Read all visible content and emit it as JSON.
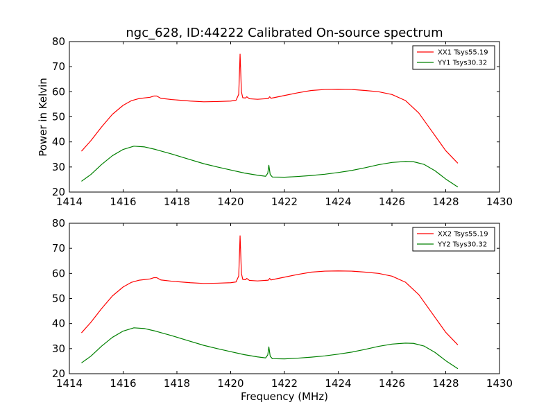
{
  "figure": {
    "title": "ngc_628, ID:44222 Calibrated On-source spectrum",
    "xlabel": "Frequency (MHz)",
    "ylabel": "Power in Kelvin"
  },
  "chart_data": [
    {
      "type": "line",
      "xlim": [
        1414,
        1430
      ],
      "ylim": [
        20,
        80
      ],
      "xticks": [
        1414,
        1416,
        1418,
        1420,
        1422,
        1424,
        1426,
        1428,
        1430
      ],
      "yticks": [
        20,
        30,
        40,
        50,
        60,
        70,
        80
      ],
      "ylabel": "Power in Kelvin",
      "xlabel": "",
      "legend_position": "top-right",
      "series": [
        {
          "name": "XX1 Tsys55.19",
          "color": "#ff0000",
          "points": [
            [
              1414.45,
              36.3
            ],
            [
              1414.8,
              40.5
            ],
            [
              1415.2,
              46.0
            ],
            [
              1415.6,
              51.0
            ],
            [
              1416.0,
              54.6
            ],
            [
              1416.3,
              56.4
            ],
            [
              1416.6,
              57.3
            ],
            [
              1417.0,
              57.8
            ],
            [
              1417.15,
              58.3
            ],
            [
              1417.25,
              58.3
            ],
            [
              1417.4,
              57.4
            ],
            [
              1417.8,
              56.9
            ],
            [
              1418.5,
              56.3
            ],
            [
              1419.0,
              56.0
            ],
            [
              1419.5,
              56.1
            ],
            [
              1420.0,
              56.3
            ],
            [
              1420.2,
              56.6
            ],
            [
              1420.3,
              59.0
            ],
            [
              1420.35,
              75.0
            ],
            [
              1420.4,
              60.0
            ],
            [
              1420.45,
              57.6
            ],
            [
              1420.55,
              57.5
            ],
            [
              1420.6,
              58.0
            ],
            [
              1420.7,
              57.2
            ],
            [
              1421.0,
              57.0
            ],
            [
              1421.4,
              57.3
            ],
            [
              1421.45,
              58.0
            ],
            [
              1421.5,
              57.4
            ],
            [
              1422.0,
              58.5
            ],
            [
              1422.5,
              59.6
            ],
            [
              1423.0,
              60.5
            ],
            [
              1423.5,
              60.9
            ],
            [
              1424.0,
              61.0
            ],
            [
              1424.5,
              60.9
            ],
            [
              1425.0,
              60.5
            ],
            [
              1425.5,
              60.0
            ],
            [
              1426.0,
              58.9
            ],
            [
              1426.5,
              56.5
            ],
            [
              1427.0,
              51.5
            ],
            [
              1427.5,
              44.0
            ],
            [
              1428.0,
              36.5
            ],
            [
              1428.45,
              31.5
            ]
          ]
        },
        {
          "name": "YY1 Tsys30.32",
          "color": "#008000",
          "points": [
            [
              1414.45,
              24.3
            ],
            [
              1414.8,
              27.0
            ],
            [
              1415.2,
              31.0
            ],
            [
              1415.6,
              34.5
            ],
            [
              1416.0,
              37.0
            ],
            [
              1416.4,
              38.3
            ],
            [
              1416.8,
              38.0
            ],
            [
              1417.2,
              37.0
            ],
            [
              1417.8,
              35.2
            ],
            [
              1418.5,
              32.9
            ],
            [
              1419.0,
              31.3
            ],
            [
              1419.5,
              30.0
            ],
            [
              1420.0,
              28.8
            ],
            [
              1420.5,
              27.6
            ],
            [
              1421.0,
              26.7
            ],
            [
              1421.3,
              26.3
            ],
            [
              1421.38,
              27.5
            ],
            [
              1421.42,
              30.7
            ],
            [
              1421.47,
              27.0
            ],
            [
              1421.55,
              26.0
            ],
            [
              1422.0,
              25.9
            ],
            [
              1422.5,
              26.2
            ],
            [
              1423.0,
              26.6
            ],
            [
              1423.5,
              27.1
            ],
            [
              1424.0,
              27.8
            ],
            [
              1424.5,
              28.6
            ],
            [
              1425.0,
              29.7
            ],
            [
              1425.5,
              30.9
            ],
            [
              1426.0,
              31.8
            ],
            [
              1426.5,
              32.2
            ],
            [
              1426.8,
              32.1
            ],
            [
              1427.2,
              31.0
            ],
            [
              1427.6,
              28.5
            ],
            [
              1428.0,
              25.2
            ],
            [
              1428.45,
              22.0
            ]
          ]
        }
      ]
    },
    {
      "type": "line",
      "xlim": [
        1414,
        1430
      ],
      "ylim": [
        20,
        80
      ],
      "xticks": [
        1414,
        1416,
        1418,
        1420,
        1422,
        1424,
        1426,
        1428,
        1430
      ],
      "yticks": [
        20,
        30,
        40,
        50,
        60,
        70,
        80
      ],
      "ylabel": "",
      "xlabel": "Frequency (MHz)",
      "legend_position": "top-right",
      "series": [
        {
          "name": "XX2 Tsys55.19",
          "color": "#ff0000",
          "points": [
            [
              1414.45,
              36.3
            ],
            [
              1414.8,
              40.5
            ],
            [
              1415.2,
              46.0
            ],
            [
              1415.6,
              51.0
            ],
            [
              1416.0,
              54.6
            ],
            [
              1416.3,
              56.4
            ],
            [
              1416.6,
              57.3
            ],
            [
              1417.0,
              57.8
            ],
            [
              1417.15,
              58.3
            ],
            [
              1417.25,
              58.3
            ],
            [
              1417.4,
              57.4
            ],
            [
              1417.8,
              56.9
            ],
            [
              1418.5,
              56.3
            ],
            [
              1419.0,
              56.0
            ],
            [
              1419.5,
              56.1
            ],
            [
              1420.0,
              56.3
            ],
            [
              1420.2,
              56.6
            ],
            [
              1420.3,
              59.0
            ],
            [
              1420.35,
              75.0
            ],
            [
              1420.4,
              60.0
            ],
            [
              1420.45,
              57.6
            ],
            [
              1420.55,
              57.5
            ],
            [
              1420.6,
              58.0
            ],
            [
              1420.7,
              57.2
            ],
            [
              1421.0,
              57.0
            ],
            [
              1421.4,
              57.3
            ],
            [
              1421.45,
              58.0
            ],
            [
              1421.5,
              57.4
            ],
            [
              1422.0,
              58.5
            ],
            [
              1422.5,
              59.6
            ],
            [
              1423.0,
              60.5
            ],
            [
              1423.5,
              60.9
            ],
            [
              1424.0,
              61.0
            ],
            [
              1424.5,
              60.9
            ],
            [
              1425.0,
              60.5
            ],
            [
              1425.5,
              60.0
            ],
            [
              1426.0,
              58.9
            ],
            [
              1426.5,
              56.5
            ],
            [
              1427.0,
              51.5
            ],
            [
              1427.5,
              44.0
            ],
            [
              1428.0,
              36.5
            ],
            [
              1428.45,
              31.5
            ]
          ]
        },
        {
          "name": "YY2 Tsys30.32",
          "color": "#008000",
          "points": [
            [
              1414.45,
              24.3
            ],
            [
              1414.8,
              27.0
            ],
            [
              1415.2,
              31.0
            ],
            [
              1415.6,
              34.5
            ],
            [
              1416.0,
              37.0
            ],
            [
              1416.4,
              38.3
            ],
            [
              1416.8,
              38.0
            ],
            [
              1417.2,
              37.0
            ],
            [
              1417.8,
              35.2
            ],
            [
              1418.5,
              32.9
            ],
            [
              1419.0,
              31.3
            ],
            [
              1419.5,
              30.0
            ],
            [
              1420.0,
              28.8
            ],
            [
              1420.5,
              27.6
            ],
            [
              1421.0,
              26.7
            ],
            [
              1421.3,
              26.3
            ],
            [
              1421.38,
              27.5
            ],
            [
              1421.42,
              30.7
            ],
            [
              1421.47,
              27.0
            ],
            [
              1421.55,
              26.0
            ],
            [
              1422.0,
              25.9
            ],
            [
              1422.5,
              26.2
            ],
            [
              1423.0,
              26.6
            ],
            [
              1423.5,
              27.1
            ],
            [
              1424.0,
              27.8
            ],
            [
              1424.5,
              28.6
            ],
            [
              1425.0,
              29.7
            ],
            [
              1425.5,
              30.9
            ],
            [
              1426.0,
              31.8
            ],
            [
              1426.5,
              32.2
            ],
            [
              1426.8,
              32.1
            ],
            [
              1427.2,
              31.0
            ],
            [
              1427.6,
              28.5
            ],
            [
              1428.0,
              25.2
            ],
            [
              1428.45,
              22.0
            ]
          ]
        }
      ]
    }
  ]
}
